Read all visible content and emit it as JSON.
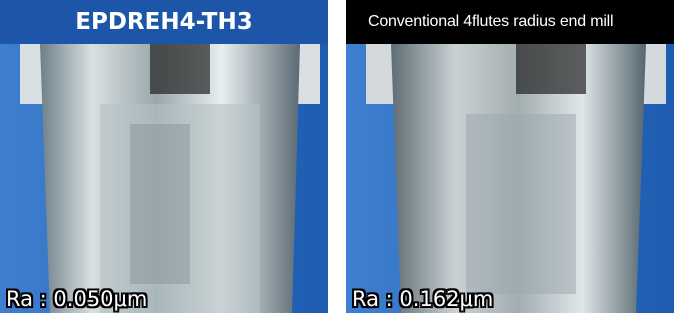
{
  "panels": [
    {
      "title": "EPDREH4-TH3",
      "caption": "Ra : 0.050μm"
    },
    {
      "title": "Conventional 4flutes radius end mill",
      "caption": "Ra : 0.162μm"
    }
  ]
}
